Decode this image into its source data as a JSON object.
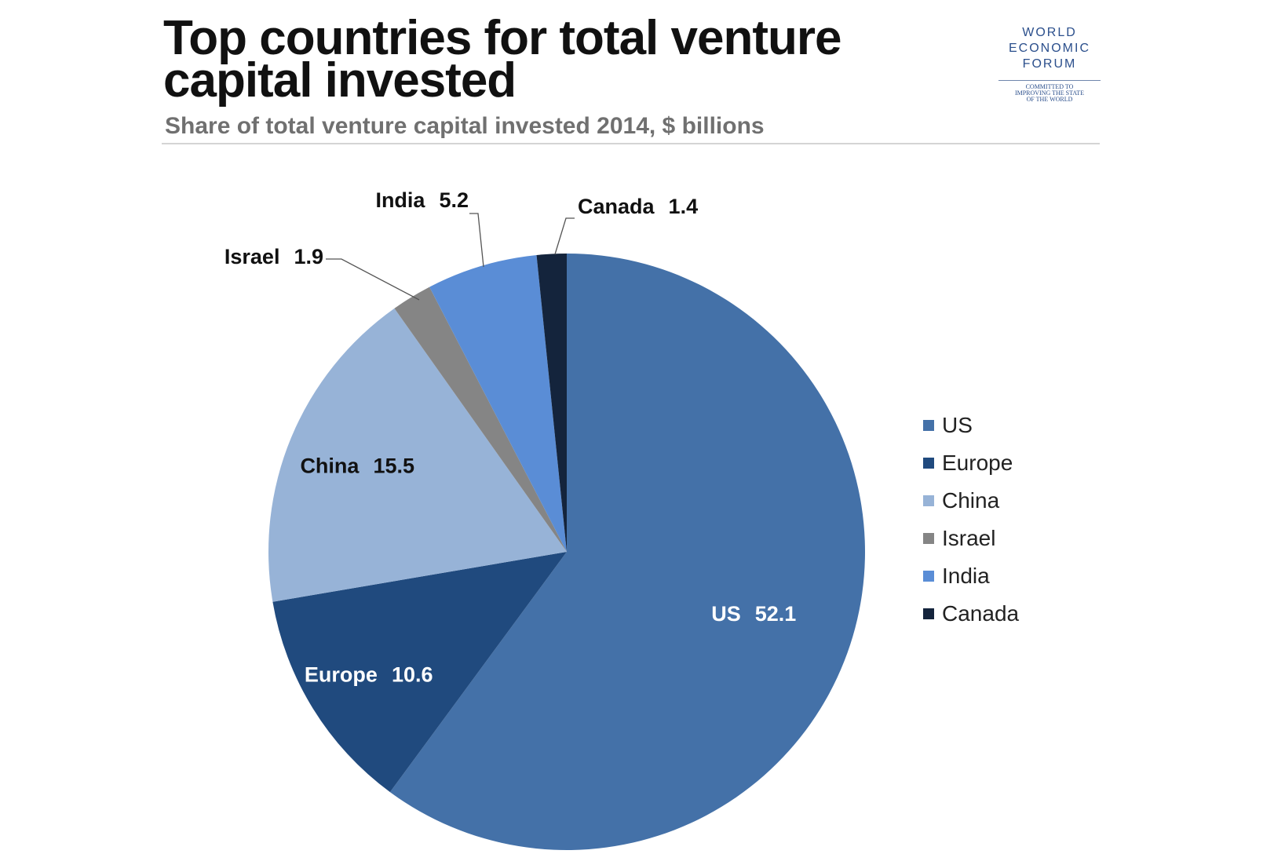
{
  "header": {
    "title_line1": "Top countries for total venture",
    "title_line2": "capital invested",
    "subtitle": "Share of total venture capital invested 2014, $ billions"
  },
  "logo": {
    "name_lines": [
      "WORLD",
      "ECONOMIC",
      "FORUM"
    ],
    "tagline_lines": [
      "COMMITTED TO",
      "IMPROVING THE STATE",
      "OF THE WORLD"
    ],
    "color": "#2b4f8c"
  },
  "chart_data": {
    "type": "pie",
    "title": "Top countries for total venture capital invested",
    "subtitle": "Share of total venture capital invested 2014, $ billions",
    "start_angle_deg": 0,
    "direction": "clockwise",
    "legend_position": "right",
    "slices": [
      {
        "label": "US",
        "value": 52.1,
        "color": "#4471a8",
        "label_color": "#ffffff"
      },
      {
        "label": "Europe",
        "value": 10.6,
        "color": "#204a7e",
        "label_color": "#ffffff"
      },
      {
        "label": "China",
        "value": 15.5,
        "color": "#97b3d7",
        "label_color": "#111111"
      },
      {
        "label": "Israel",
        "value": 1.9,
        "color": "#858585",
        "label_color": "#111111"
      },
      {
        "label": "India",
        "value": 5.2,
        "color": "#5a8dd6",
        "label_color": "#111111"
      },
      {
        "label": "Canada",
        "value": 1.4,
        "color": "#14243c",
        "label_color": "#111111"
      }
    ]
  }
}
